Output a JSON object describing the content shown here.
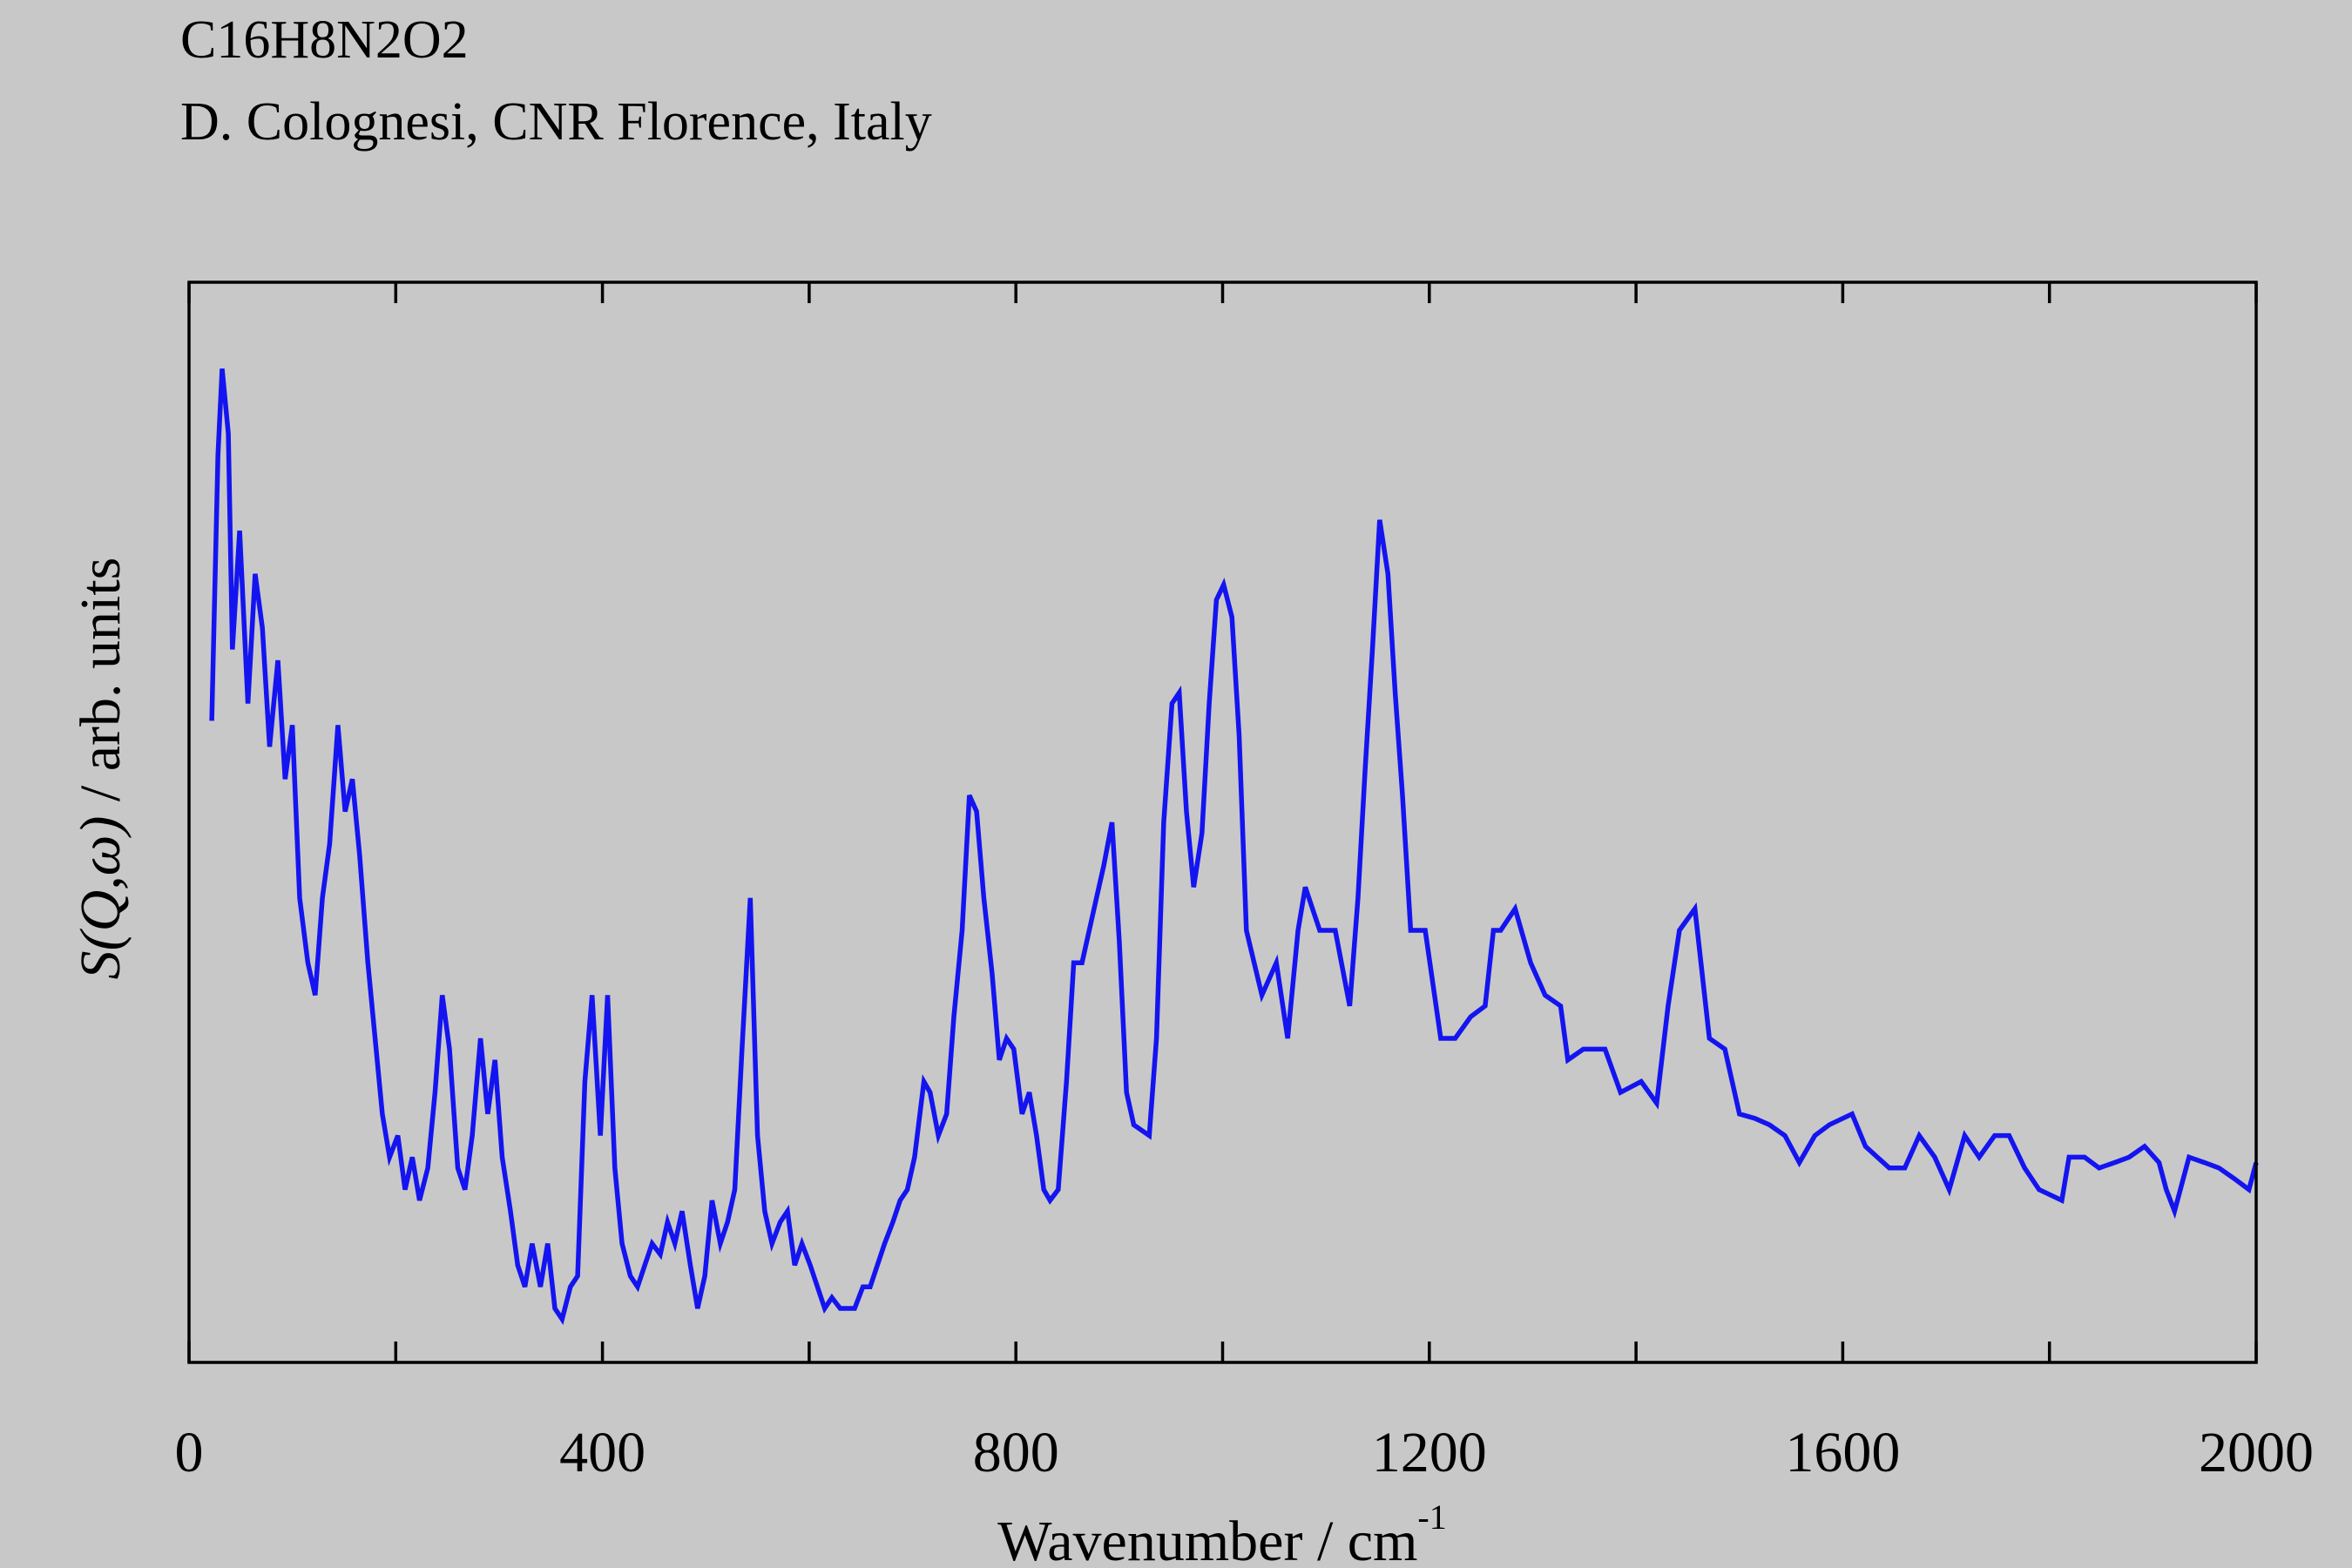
{
  "chart_data": {
    "type": "line",
    "title": "C16H8N2O2",
    "subtitle": "D. Colognesi, CNR Florence, Italy",
    "x_label": {
      "text": "Wavenumber / cm",
      "superscript": "-1"
    },
    "y_label": {
      "italic": "S(Q,ω)",
      "text": " / arb. units"
    },
    "xlim": [
      0,
      2000
    ],
    "xticks": [
      0,
      400,
      800,
      1200,
      1600,
      2000
    ],
    "xminor_ticks": [
      200,
      600,
      1000,
      1400,
      1800
    ],
    "ylim": [
      0,
      100
    ],
    "series": [
      {
        "color": "#1414f0",
        "x": [
          22,
          28,
          32,
          38,
          42,
          49,
          57,
          64,
          71,
          78,
          86,
          93,
          100,
          107,
          115,
          122,
          129,
          136,
          144,
          151,
          158,
          165,
          173,
          180,
          187,
          194,
          202,
          209,
          216,
          223,
          231,
          238,
          245,
          252,
          260,
          267,
          274,
          282,
          289,
          296,
          303,
          311,
          318,
          325,
          332,
          340,
          347,
          354,
          361,
          369,
          376,
          383,
          390,
          398,
          405,
          412,
          419,
          427,
          434,
          441,
          448,
          456,
          463,
          470,
          477,
          485,
          492,
          499,
          506,
          514,
          521,
          528,
          535,
          543,
          550,
          557,
          564,
          572,
          579,
          586,
          593,
          601,
          608,
          615,
          622,
          630,
          644,
          652,
          659,
          666,
          673,
          681,
          688,
          695,
          702,
          711,
          717,
          725,
          733,
          740,
          748,
          755,
          762,
          769,
          777,
          784,
          791,
          798,
          806,
          813,
          820,
          827,
          833,
          841,
          849,
          856,
          864,
          871,
          878,
          885,
          893,
          900,
          907,
          914,
          929,
          936,
          943,
          951,
          958,
          965,
          972,
          980,
          987,
          994,
          1001,
          1009,
          1016,
          1023,
          1038,
          1052,
          1063,
          1073,
          1080,
          1094,
          1109,
          1123,
          1131,
          1138,
          1145,
          1152,
          1160,
          1167,
          1174,
          1182,
          1196,
          1211,
          1225,
          1240,
          1254,
          1262,
          1269,
          1283,
          1298,
          1312,
          1327,
          1334,
          1349,
          1370,
          1385,
          1405,
          1420,
          1431,
          1442,
          1457,
          1471,
          1486,
          1500,
          1515,
          1529,
          1544,
          1558,
          1573,
          1587,
          1609,
          1622,
          1645,
          1660,
          1674,
          1689,
          1703,
          1718,
          1732,
          1747,
          1761,
          1776,
          1790,
          1812,
          1819,
          1834,
          1848,
          1863,
          1877,
          1892,
          1906,
          1913,
          1921,
          1935,
          1950,
          1964,
          1979,
          1993,
          2000
        ],
        "values": [
          59.4,
          84,
          92,
          86,
          66,
          77,
          61,
          73,
          68,
          57,
          65,
          54,
          59,
          43,
          37,
          34,
          43,
          48,
          59,
          51,
          54,
          47,
          37,
          30,
          23,
          19,
          21,
          16,
          19,
          15,
          18,
          25,
          34,
          29,
          18,
          16,
          21,
          30,
          23,
          28,
          19,
          14,
          9,
          7,
          11,
          7,
          11,
          5,
          4,
          7,
          8,
          26,
          34,
          21,
          34,
          18,
          11,
          8,
          7,
          9,
          11,
          10,
          13,
          11,
          14,
          9,
          5,
          8,
          15,
          11,
          13,
          16,
          29,
          43,
          21,
          14,
          11,
          13,
          14,
          9,
          11,
          9,
          7,
          5,
          6,
          5,
          5,
          7,
          7,
          9,
          11,
          13,
          15,
          16,
          19,
          26,
          25,
          21,
          23,
          32,
          40,
          52.5,
          51,
          43,
          36,
          28,
          30,
          29,
          23,
          25,
          21,
          16,
          15,
          16,
          26,
          37,
          37,
          40,
          43,
          46,
          50,
          39,
          25,
          22,
          21,
          30,
          50,
          61,
          62,
          51,
          44,
          49,
          61,
          70.6,
          72,
          69,
          58,
          40,
          34,
          37,
          30,
          40,
          44,
          40,
          40,
          33,
          43,
          55,
          66,
          78,
          73,
          62,
          52.5,
          40,
          40,
          30,
          30,
          32,
          33,
          40,
          40,
          42,
          37,
          34,
          33,
          28,
          29,
          29,
          25,
          26,
          24,
          33,
          40,
          42,
          30,
          29,
          23,
          22.6,
          22,
          21,
          18.5,
          21,
          22,
          23,
          20,
          18,
          18,
          21,
          19,
          16,
          21,
          19,
          21,
          21,
          18,
          16,
          15,
          19,
          19,
          18,
          18.5,
          19,
          20,
          18.5,
          16,
          14,
          19,
          18.5,
          18,
          17,
          16,
          18.5
        ]
      }
    ]
  }
}
